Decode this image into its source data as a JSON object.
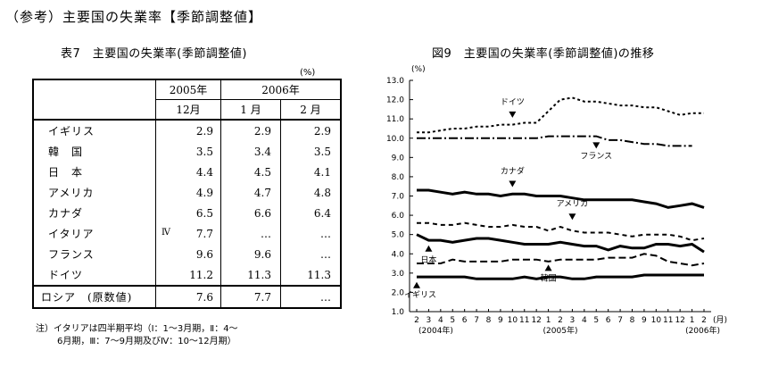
{
  "heading": "（参考）主要国の失業率【季節調整値】",
  "table": {
    "title": "表7　主要国の失業率(季節調整値)",
    "unit": "(%)",
    "year_headers": [
      "2005年",
      "2006年"
    ],
    "month_headers": [
      "12月",
      "1 月",
      "2 月"
    ],
    "rows": [
      {
        "country": "イギリス",
        "mark": "",
        "v1": "2.9",
        "v2": "2.9",
        "v3": "2.9"
      },
      {
        "country": "韓　国",
        "mark": "",
        "v1": "3.5",
        "v2": "3.4",
        "v3": "3.5"
      },
      {
        "country": "日　本",
        "mark": "",
        "v1": "4.4",
        "v2": "4.5",
        "v3": "4.1"
      },
      {
        "country": "アメリカ",
        "mark": "",
        "v1": "4.9",
        "v2": "4.7",
        "v3": "4.8"
      },
      {
        "country": "カナダ",
        "mark": "",
        "v1": "6.5",
        "v2": "6.6",
        "v3": "6.4"
      },
      {
        "country": "イタリア",
        "mark": "Ⅳ",
        "v1": "7.7",
        "v2": "…",
        "v3": "…"
      },
      {
        "country": "フランス",
        "mark": "",
        "v1": "9.6",
        "v2": "9.6",
        "v3": "…"
      },
      {
        "country": "ドイツ",
        "mark": "",
        "v1": "11.2",
        "v2": "11.3",
        "v3": "11.3"
      }
    ],
    "russia": {
      "country": "ロシア　(原数値)",
      "v1": "7.6",
      "v2": "7.7",
      "v3": "…"
    }
  },
  "note_line1": "注）イタリアは四半期平均（Ⅰ：1～3月期，Ⅱ：4～",
  "note_line2": "6月期，Ⅲ：7～9月期及びⅣ：10～12月期）",
  "chart_data": {
    "type": "line",
    "title": "図9　主要国の失業率(季節調整値)の推移",
    "ylabel": "(%)",
    "xlabel": "(月)",
    "ylim": [
      1.0,
      13.0
    ],
    "yticks": [
      "13.0",
      "12.0",
      "11.0",
      "10.0",
      "9.0",
      "8.0",
      "7.0",
      "6.0",
      "5.0",
      "4.0",
      "3.0",
      "2.0",
      "1.0"
    ],
    "x": [
      "2",
      "3",
      "4",
      "5",
      "6",
      "7",
      "8",
      "9",
      "10",
      "11",
      "12",
      "1",
      "2",
      "3",
      "4",
      "5",
      "6",
      "7",
      "8",
      "9",
      "10",
      "11",
      "12",
      "1",
      "2"
    ],
    "year_labels": [
      "(2004年)",
      "(2005年)",
      "(2006年)"
    ],
    "grid": false,
    "series": [
      {
        "name": "ドイツ",
        "color": "#000000",
        "style": "dotted",
        "values": [
          10.3,
          10.3,
          10.4,
          10.5,
          10.5,
          10.6,
          10.6,
          10.7,
          10.7,
          10.8,
          10.8,
          11.4,
          12.0,
          12.1,
          11.9,
          11.9,
          11.8,
          11.7,
          11.7,
          11.6,
          11.6,
          11.4,
          11.2,
          11.3,
          11.3
        ]
      },
      {
        "name": "フランス",
        "color": "#000000",
        "style": "dashdot",
        "values": [
          10.0,
          10.0,
          10.0,
          10.0,
          10.0,
          10.0,
          10.0,
          10.0,
          10.0,
          10.0,
          10.0,
          10.1,
          10.1,
          10.1,
          10.1,
          10.1,
          9.9,
          9.9,
          9.8,
          9.7,
          9.7,
          9.6,
          9.6,
          9.6,
          null
        ]
      },
      {
        "name": "カナダ",
        "color": "#000000",
        "style": "thick",
        "values": [
          7.3,
          7.3,
          7.2,
          7.1,
          7.2,
          7.1,
          7.1,
          7.0,
          7.1,
          7.1,
          7.0,
          7.0,
          7.0,
          6.9,
          6.8,
          6.8,
          6.8,
          6.8,
          6.8,
          6.7,
          6.6,
          6.4,
          6.5,
          6.6,
          6.4
        ]
      },
      {
        "name": "アメリカ",
        "color": "#000000",
        "style": "dashed",
        "values": [
          5.6,
          5.6,
          5.5,
          5.5,
          5.6,
          5.5,
          5.4,
          5.4,
          5.5,
          5.4,
          5.4,
          5.2,
          5.4,
          5.2,
          5.1,
          5.1,
          5.1,
          5.0,
          4.9,
          5.0,
          5.0,
          5.0,
          4.9,
          4.7,
          4.8
        ]
      },
      {
        "name": "日本",
        "color": "#000000",
        "style": "thick",
        "values": [
          5.0,
          4.7,
          4.7,
          4.6,
          4.7,
          4.8,
          4.8,
          4.7,
          4.6,
          4.5,
          4.5,
          4.5,
          4.6,
          4.5,
          4.4,
          4.4,
          4.2,
          4.4,
          4.3,
          4.3,
          4.5,
          4.5,
          4.4,
          4.5,
          4.1
        ]
      },
      {
        "name": "韓国",
        "color": "#000000",
        "style": "dashed2",
        "values": [
          3.5,
          3.5,
          3.5,
          3.7,
          3.6,
          3.6,
          3.6,
          3.6,
          3.7,
          3.7,
          3.7,
          3.6,
          3.7,
          3.7,
          3.7,
          3.7,
          3.8,
          3.8,
          3.8,
          4.0,
          3.9,
          3.6,
          3.5,
          3.4,
          3.5
        ]
      },
      {
        "name": "イギリス",
        "color": "#000000",
        "style": "thick",
        "values": [
          2.8,
          2.8,
          2.8,
          2.8,
          2.8,
          2.7,
          2.7,
          2.7,
          2.7,
          2.8,
          2.7,
          2.8,
          2.8,
          2.7,
          2.7,
          2.8,
          2.8,
          2.8,
          2.8,
          2.9,
          2.9,
          2.9,
          2.9,
          2.9,
          2.9
        ]
      }
    ],
    "annotations": [
      "ドイツ",
      "フランス",
      "カナダ",
      "アメリカ",
      "日本",
      "韓国",
      "イギリス"
    ]
  }
}
